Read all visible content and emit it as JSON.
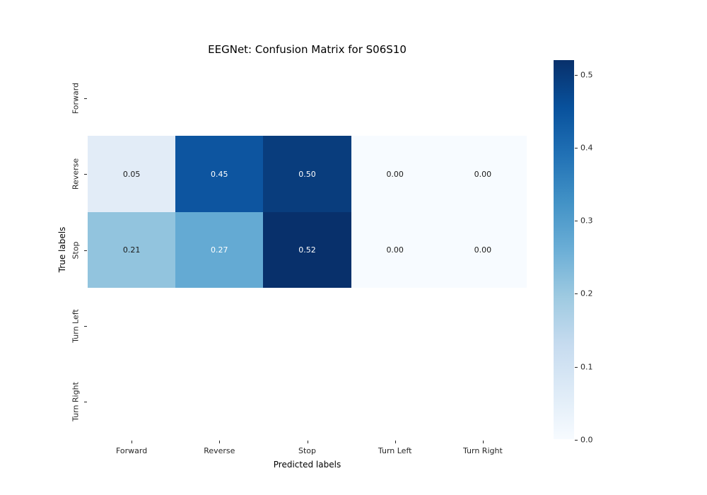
{
  "chart_data": {
    "type": "heatmap",
    "title": "EEGNet: Confusion Matrix for S06S10",
    "xlabel": "Predicted labels",
    "ylabel": "True labels",
    "x_categories": [
      "Forward",
      "Reverse",
      "Stop",
      "Turn Left",
      "Turn Right"
    ],
    "y_categories": [
      "Forward",
      "Reverse",
      "Stop",
      "Turn Left",
      "Turn Right"
    ],
    "colormap": "Blues",
    "vmin": 0.0,
    "vmax": 0.52,
    "rows": [
      {
        "label": "Forward",
        "values": null,
        "display": null,
        "bg": null,
        "fg": null
      },
      {
        "label": "Reverse",
        "values": [
          0.05,
          0.45,
          0.5,
          0.0,
          0.0
        ],
        "display": [
          "0.05",
          "0.45",
          "0.50",
          "0.00",
          "0.00"
        ],
        "bg": [
          "#e2ecf7",
          "#0d55a0",
          "#093d7d",
          "#f7fbff",
          "#f7fbff"
        ],
        "fg": [
          "#1a1a1a",
          "#ffffff",
          "#ffffff",
          "#1a1a1a",
          "#1a1a1a"
        ]
      },
      {
        "label": "Stop",
        "values": [
          0.21,
          0.27,
          0.52,
          0.0,
          0.0
        ],
        "display": [
          "0.21",
          "0.27",
          "0.52",
          "0.00",
          "0.00"
        ],
        "bg": [
          "#92c4de",
          "#64aad3",
          "#08306b",
          "#f7fbff",
          "#f7fbff"
        ],
        "fg": [
          "#1a1a1a",
          "#ffffff",
          "#ffffff",
          "#1a1a1a",
          "#1a1a1a"
        ]
      },
      {
        "label": "Turn Left",
        "values": null,
        "display": null,
        "bg": null,
        "fg": null
      },
      {
        "label": "Turn Right",
        "values": null,
        "display": null,
        "bg": null,
        "fg": null
      }
    ],
    "colorbar": {
      "ticks": [
        0.0,
        0.1,
        0.2,
        0.3,
        0.4,
        0.5
      ],
      "tick_labels": [
        "0.0",
        "0.1",
        "0.2",
        "0.3",
        "0.4",
        "0.5"
      ],
      "gradient_stops": [
        "#f7fbff",
        "#deebf7",
        "#c6dbef",
        "#9ecae1",
        "#6baed6",
        "#4292c6",
        "#2171b5",
        "#08519c",
        "#08306b"
      ]
    },
    "grid": false,
    "legend": "colorbar-right"
  }
}
